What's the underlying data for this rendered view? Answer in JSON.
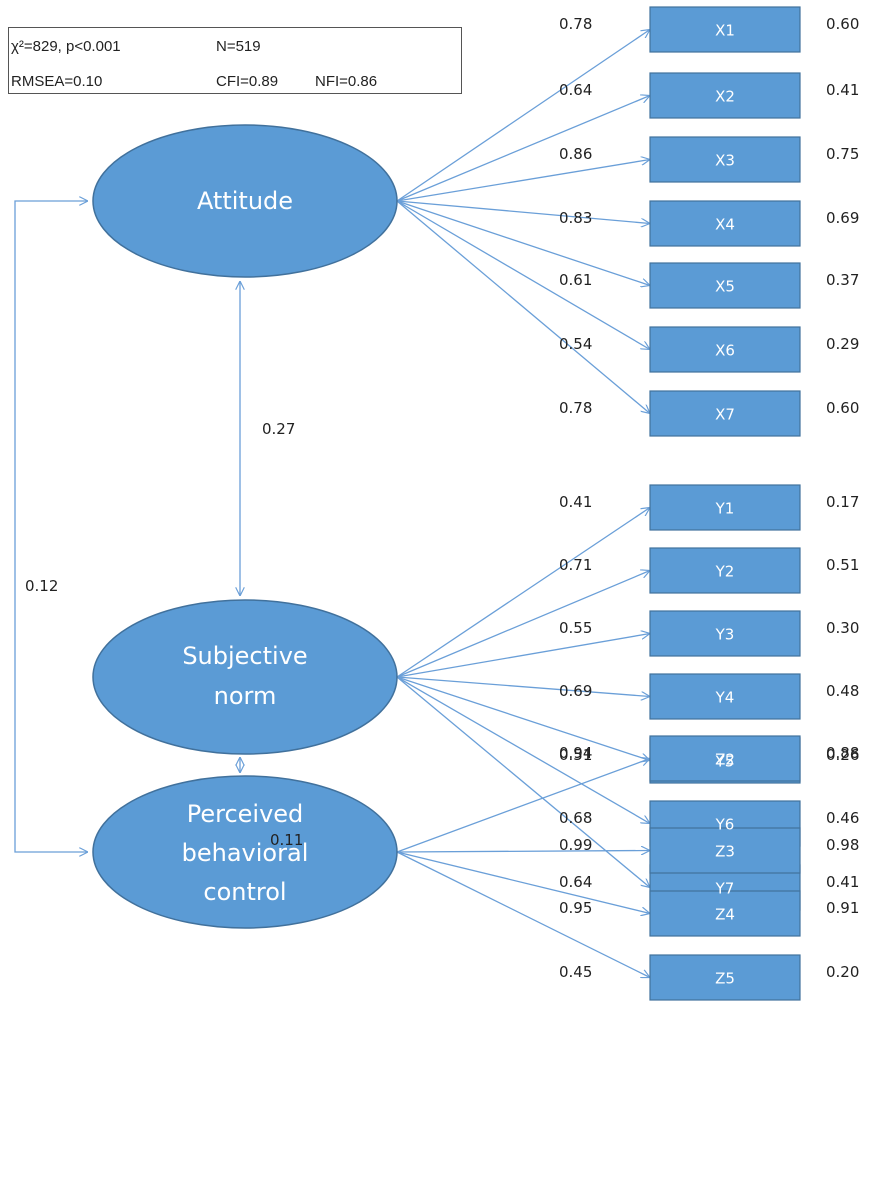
{
  "fit_stats": {
    "chi_square": "χ²=829, p<0.001",
    "n": "N=519",
    "rmsea": "RMSEA=0.10",
    "cfi": "CFI=0.89",
    "nfi": "NFI=0.86"
  },
  "factors": [
    {
      "id": "attitude",
      "label_lines": [
        "Attitude"
      ]
    },
    {
      "id": "subjective-norm",
      "label_lines": [
        "Subjective",
        "norm"
      ]
    },
    {
      "id": "perceived-behavioral-control",
      "label_lines": [
        "Perceived",
        "behavioral",
        "control"
      ]
    }
  ],
  "indicators": [
    {
      "factor": 0,
      "label": "X1",
      "loading": "0.78",
      "r2": "0.60"
    },
    {
      "factor": 0,
      "label": "X2",
      "loading": "0.64",
      "r2": "0.41"
    },
    {
      "factor": 0,
      "label": "X3",
      "loading": "0.86",
      "r2": "0.75"
    },
    {
      "factor": 0,
      "label": "X4",
      "loading": "0.83",
      "r2": "0.69"
    },
    {
      "factor": 0,
      "label": "X5",
      "loading": "0.61",
      "r2": "0.37"
    },
    {
      "factor": 0,
      "label": "X6",
      "loading": "0.54",
      "r2": "0.29"
    },
    {
      "factor": 0,
      "label": "X7",
      "loading": "0.78",
      "r2": "0.60"
    },
    {
      "factor": 1,
      "label": "Y1",
      "loading": "0.41",
      "r2": "0.17"
    },
    {
      "factor": 1,
      "label": "Y2",
      "loading": "0.71",
      "r2": "0.51"
    },
    {
      "factor": 1,
      "label": "Y3",
      "loading": "0.55",
      "r2": "0.30"
    },
    {
      "factor": 1,
      "label": "Y4",
      "loading": "0.69",
      "r2": "0.48"
    },
    {
      "factor": 1,
      "label": "Y5",
      "loading": "0.51",
      "r2": "0.26"
    },
    {
      "factor": 1,
      "label": "Y6",
      "loading": "0.68",
      "r2": "0.46"
    },
    {
      "factor": 1,
      "label": "Y7",
      "loading": "0.64",
      "r2": "0.41"
    },
    {
      "factor": 2,
      "label": "Z2",
      "loading": "0.94",
      "r2": "0.88"
    },
    {
      "factor": 2,
      "label": "Z3",
      "loading": "0.99",
      "r2": "0.98"
    },
    {
      "factor": 2,
      "label": "Z4",
      "loading": "0.95",
      "r2": "0.91"
    },
    {
      "factor": 2,
      "label": "Z5",
      "loading": "0.45",
      "r2": "0.20"
    }
  ],
  "correlations": [
    {
      "from": 0,
      "to": 1,
      "value": "0.27"
    },
    {
      "from": 1,
      "to": 2,
      "value": "0.11"
    },
    {
      "from": 0,
      "to": 2,
      "value": "0.12"
    }
  ],
  "colors": {
    "fill": "#5B9BD5",
    "stroke": "#41719C",
    "arrow": "#6A9FD8"
  }
}
